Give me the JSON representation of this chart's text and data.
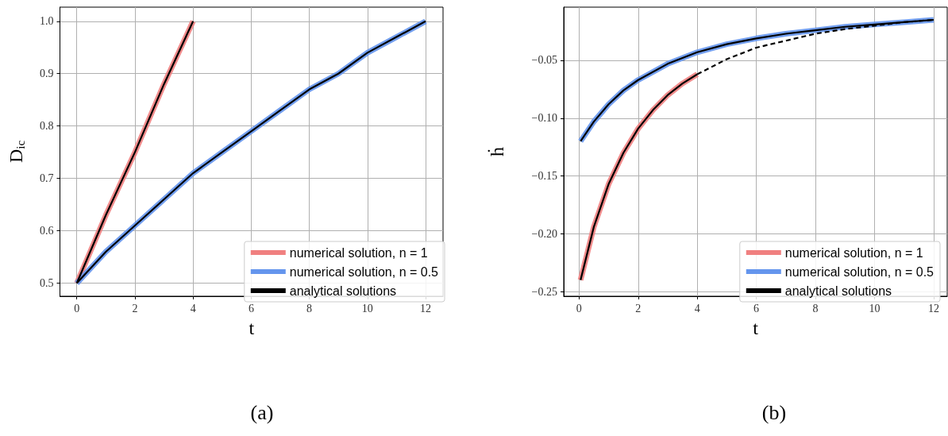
{
  "chart_data": [
    {
      "type": "line",
      "xlabel": "t",
      "ylabel": "D$_{ic}$",
      "annotations": [
        "(a)"
      ],
      "xlim": [
        -0.58,
        12.6
      ],
      "ylim": [
        0.475,
        1.027
      ],
      "xticks": [
        0,
        2,
        4,
        6,
        8,
        10,
        12
      ],
      "yticks": [
        {
          "value": 0.5,
          "label": "0.5"
        },
        {
          "value": 0.6,
          "label": "0.6"
        },
        {
          "value": 0.7,
          "label": "0.7"
        },
        {
          "value": 0.8,
          "label": "0.8"
        },
        {
          "value": 0.9,
          "label": "0.9"
        },
        {
          "value": 1.0,
          "label": "1.0"
        }
      ],
      "grid": true,
      "legend": "bottom right",
      "series": [
        {
          "name": "numerical solution, n = 1",
          "color": "#f08080",
          "x": [
            0,
            1,
            2,
            3,
            4
          ],
          "values": [
            0.5,
            0.63,
            0.75,
            0.88,
            1.0
          ]
        },
        {
          "name": "numerical solution, n = 0.5",
          "color": "#6495ed",
          "x": [
            0,
            1,
            2,
            3,
            4,
            5,
            6,
            7,
            8,
            9,
            10,
            11,
            12
          ],
          "values": [
            0.5,
            0.56,
            0.61,
            0.66,
            0.71,
            0.75,
            0.79,
            0.83,
            0.87,
            0.9,
            0.94,
            0.97,
            1.0
          ]
        },
        {
          "name": "analytical solutions",
          "color": "#000000",
          "x": [
            0,
            1,
            2,
            3,
            4
          ],
          "values": [
            0.5,
            0.63,
            0.75,
            0.88,
            1.0
          ]
        },
        {
          "color": "#000000",
          "x": [
            0,
            1,
            2,
            3,
            4,
            5,
            6,
            7,
            8,
            9,
            10,
            11,
            12
          ],
          "values": [
            0.5,
            0.56,
            0.61,
            0.66,
            0.71,
            0.75,
            0.79,
            0.83,
            0.87,
            0.9,
            0.94,
            0.97,
            1.0
          ]
        }
      ]
    },
    {
      "type": "line",
      "xlabel": "t",
      "ylabel": "ḣ",
      "annotations": [
        "(b)"
      ],
      "xlim": [
        -0.52,
        12.46
      ],
      "ylim": [
        -0.254,
        -0.004
      ],
      "xticks": [
        0,
        2,
        4,
        6,
        8,
        10,
        12
      ],
      "yticks": [
        {
          "value": -0.25,
          "label": "−0.25"
        },
        {
          "value": -0.2,
          "label": "−0.20"
        },
        {
          "value": -0.15,
          "label": "−0.15"
        },
        {
          "value": -0.1,
          "label": "−0.10"
        },
        {
          "value": -0.05,
          "label": "−0.05"
        }
      ],
      "grid": true,
      "legend": "bottom right",
      "series": [
        {
          "name": "numerical solution, n = 1",
          "color": "#f08080",
          "x": [
            0.05,
            0.5,
            1,
            1.5,
            2,
            2.5,
            3,
            3.5,
            4
          ],
          "values": [
            -0.24,
            -0.194,
            -0.157,
            -0.13,
            -0.109,
            -0.093,
            -0.08,
            -0.07,
            -0.062
          ]
        },
        {
          "name": "numerical solution, n = 0.5",
          "color": "#6495ed",
          "x": [
            0.05,
            0.5,
            1,
            1.5,
            2,
            3,
            4,
            5,
            6,
            7,
            8,
            9,
            10,
            11,
            12
          ],
          "values": [
            -0.12,
            -0.103,
            -0.088,
            -0.076,
            -0.067,
            -0.053,
            -0.043,
            -0.036,
            -0.031,
            -0.027,
            -0.024,
            -0.021,
            -0.019,
            -0.017,
            -0.015
          ]
        },
        {
          "name": "analytical solutions",
          "color": "#000000",
          "x": [
            0.05,
            0.5,
            1,
            1.5,
            2,
            2.5,
            3,
            3.5,
            4
          ],
          "values": [
            -0.24,
            -0.194,
            -0.157,
            -0.13,
            -0.109,
            -0.093,
            -0.08,
            -0.07,
            -0.062
          ]
        },
        {
          "color": "#000000",
          "x": [
            0.05,
            0.5,
            1,
            1.5,
            2,
            3,
            4,
            5,
            6,
            7,
            8,
            9,
            10,
            11,
            12
          ],
          "values": [
            -0.12,
            -0.103,
            -0.088,
            -0.076,
            -0.067,
            -0.053,
            -0.043,
            -0.036,
            -0.031,
            -0.027,
            -0.024,
            -0.021,
            -0.019,
            -0.017,
            -0.015
          ]
        },
        {
          "color": "#000000",
          "line_style": "dashed",
          "x": [
            4,
            5,
            6,
            7,
            8,
            9,
            10,
            11,
            12
          ],
          "values": [
            -0.062,
            -0.049,
            -0.039,
            -0.033,
            -0.027,
            -0.023,
            -0.02,
            -0.017,
            -0.015
          ]
        }
      ]
    }
  ]
}
